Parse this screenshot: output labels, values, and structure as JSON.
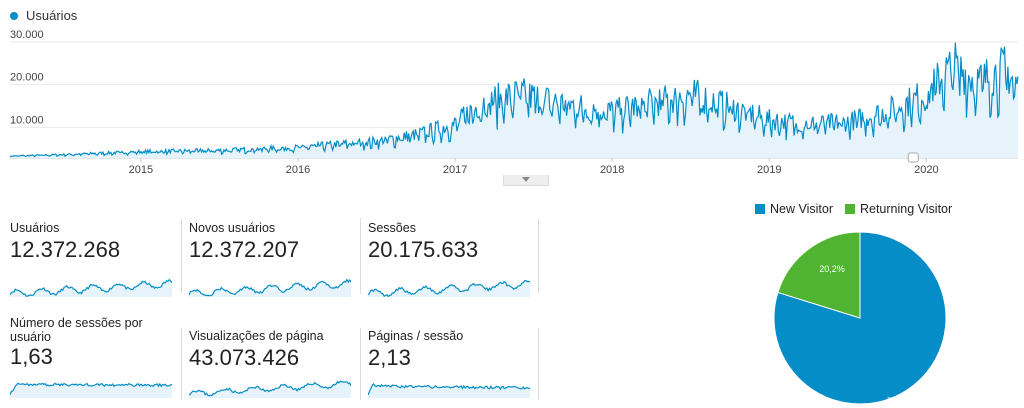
{
  "main_chart": {
    "legend_label": "Usuários",
    "y_ticks": [
      "30.000",
      "20.000",
      "10.000"
    ],
    "x_ticks": [
      "2015",
      "2016",
      "2017",
      "2018",
      "2019",
      "2020"
    ]
  },
  "metrics": [
    {
      "label": "Usuários",
      "value": "12.372.268"
    },
    {
      "label": "Novos usuários",
      "value": "12.372.207"
    },
    {
      "label": "Sessões",
      "value": "20.175.633"
    },
    {
      "label": "Número de sessões por usuário",
      "value": "1,63"
    },
    {
      "label": "Visualizações de página",
      "value": "43.073.426"
    },
    {
      "label": "Páginas / sessão",
      "value": "2,13"
    }
  ],
  "colors": {
    "primary": "#058dc7",
    "secondary": "#50b432",
    "fill": "#e6f3fa",
    "grid": "#e8e8e8"
  },
  "chart_data": [
    {
      "type": "area",
      "series": [
        {
          "name": "Usuários"
        }
      ],
      "x": [
        "2014-01",
        "2014-07",
        "2015-01",
        "2015-07",
        "2016-01",
        "2016-07",
        "2016-10",
        "2017-01",
        "2017-03",
        "2017-06",
        "2017-09",
        "2018-01",
        "2018-04",
        "2018-07",
        "2018-10",
        "2019-01",
        "2019-04",
        "2019-07",
        "2019-10",
        "2020-01",
        "2020-03",
        "2020-05",
        "2020-07",
        "2020-08"
      ],
      "y": [
        300,
        800,
        1500,
        1800,
        2500,
        4000,
        5500,
        8000,
        13000,
        15000,
        13000,
        11000,
        13000,
        15000,
        12000,
        9000,
        8000,
        8500,
        11000,
        15000,
        22000,
        18000,
        21000,
        17000
      ],
      "ylim": [
        0,
        30000
      ],
      "x_tick_labels": [
        "2015",
        "2016",
        "2017",
        "2018",
        "2019",
        "2020"
      ],
      "y_tick_labels": [
        "30.000",
        "20.000",
        "10.000"
      ]
    },
    {
      "type": "pie",
      "series": [
        {
          "name": "New Visitor",
          "value": 79.8,
          "label": "79,8%"
        },
        {
          "name": "Returning Visitor",
          "value": 20.2,
          "label": "20,2%"
        }
      ]
    }
  ]
}
